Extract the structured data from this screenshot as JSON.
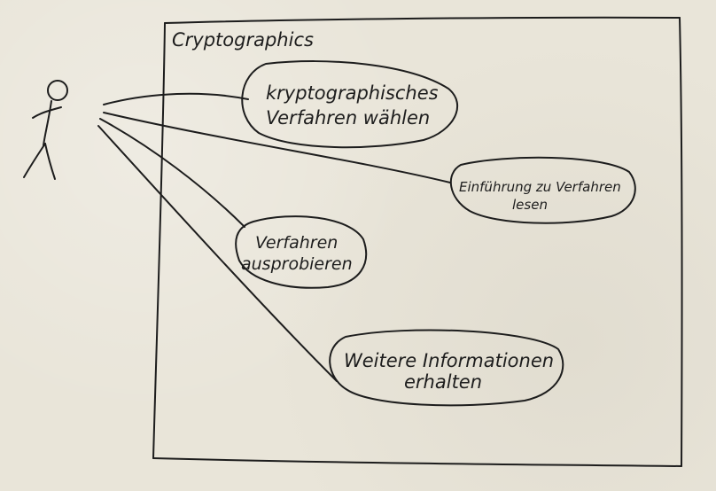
{
  "system": {
    "title": "Cryptographics"
  },
  "use_cases": [
    {
      "id": "uc1",
      "lines": [
        "kryptographisches",
        "Verfahren wählen"
      ]
    },
    {
      "id": "uc2",
      "lines": [
        "Einführung zu Verfahren",
        "lesen"
      ]
    },
    {
      "id": "uc3",
      "lines": [
        "Verfahren",
        "ausprobieren"
      ]
    },
    {
      "id": "uc4",
      "lines": [
        "Weitere Informationen",
        "erhalten"
      ]
    }
  ]
}
